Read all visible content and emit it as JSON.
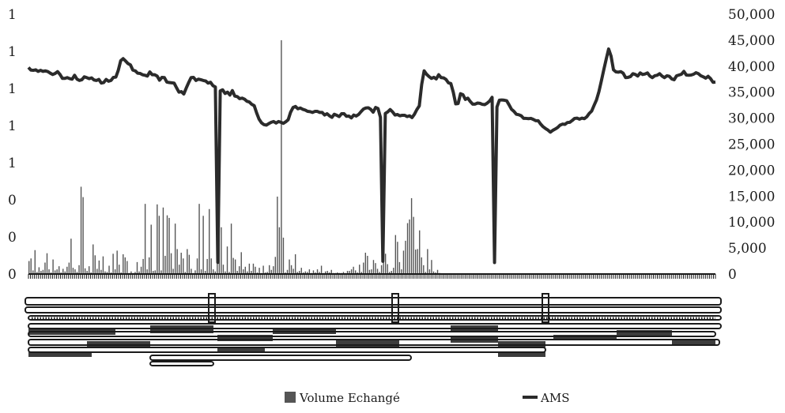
{
  "chart_data": {
    "type": "bar",
    "title": "",
    "xlabel": "",
    "ylabel": "",
    "y_left_ticks": [
      "1",
      "1",
      "1",
      "1",
      "1",
      "0",
      "0",
      "0"
    ],
    "y_right_ticks": [
      "50,000",
      "45,000",
      "40,000",
      "35,000",
      "30,000",
      "25,000",
      "20,000",
      "15,000",
      "10,000",
      "5,000",
      "0"
    ],
    "ylim_right": [
      0,
      50000
    ],
    "legend_position": "bottom",
    "grid": false,
    "x_tick_labels": "illegible",
    "series": [
      {
        "name": "Volume Echangé",
        "kind": "bar",
        "axis": "right",
        "color": "#555555",
        "values": [
          2500,
          3000,
          700,
          4600,
          400,
          1300,
          600,
          800,
          2200,
          4000,
          900,
          300,
          2800,
          700,
          900,
          1500,
          300,
          1000,
          500,
          1400,
          2200,
          6800,
          1200,
          900,
          400,
          1700,
          16800,
          14800,
          1100,
          600,
          1500,
          300,
          5700,
          3600,
          1000,
          2600,
          800,
          3400,
          500,
          400,
          1600,
          300,
          3900,
          900,
          4500,
          1800,
          300,
          3800,
          3200,
          2500,
          200,
          500,
          200,
          400,
          2300,
          500,
          1400,
          2900,
          13500,
          900,
          3200,
          9500,
          600,
          700,
          13400,
          11200,
          700,
          12800,
          3500,
          11300,
          10800,
          4000,
          1000,
          9700,
          4800,
          1800,
          4100,
          3000,
          400,
          4800,
          3700,
          1000,
          200,
          700,
          3000,
          13500,
          900,
          11200,
          600,
          2900,
          12500,
          3000,
          900,
          500,
          7000,
          12500,
          9000,
          1800,
          500,
          5300,
          400,
          9700,
          3100,
          2800,
          600,
          1500,
          4200,
          900,
          1400,
          500,
          2000,
          600,
          2000,
          1400,
          300,
          1200,
          200,
          1600,
          300,
          400,
          1700,
          800,
          1500,
          3300,
          14900,
          9000,
          45000,
          7000,
          300,
          800,
          2800,
          1700,
          1000,
          3800,
          400,
          600,
          1200,
          300,
          500,
          400,
          900,
          200,
          700,
          300,
          900,
          400,
          1600,
          200,
          500,
          600,
          300,
          800,
          200,
          200,
          300,
          200,
          200,
          400,
          200,
          600,
          600,
          900,
          1400,
          700,
          300,
          1800,
          400,
          2200,
          4100,
          3500,
          800,
          900,
          2700,
          2100,
          1000,
          400,
          1700,
          2700,
          3900,
          1900,
          400,
          600,
          1200,
          7500,
          6200,
          2300,
          900,
          4500,
          6400,
          9800,
          10500,
          14600,
          11000,
          4700,
          4800,
          8400,
          3200,
          1700,
          400,
          4800,
          900,
          2700,
          500,
          300,
          800,
          200,
          100,
          0,
          0,
          0,
          0,
          0,
          0,
          0,
          0,
          0,
          0,
          0,
          0,
          0,
          0,
          0,
          0,
          0,
          0,
          0,
          0,
          0,
          0,
          0,
          0,
          0,
          0,
          0,
          0,
          0,
          0,
          0,
          0,
          0,
          0,
          0,
          0,
          0,
          0,
          0,
          0,
          0,
          0,
          0,
          0,
          0,
          0,
          0,
          0,
          0,
          0,
          0,
          0,
          0,
          0,
          0,
          0,
          0,
          0,
          0,
          0,
          0,
          0,
          0,
          0,
          0,
          0,
          0,
          0,
          0,
          0,
          0,
          0,
          0,
          0,
          0,
          0,
          0,
          0,
          0,
          0,
          0,
          0,
          0,
          0,
          0,
          0,
          0,
          0,
          0,
          0,
          0,
          0,
          0,
          0,
          0,
          0,
          0,
          0,
          0,
          0,
          0,
          0,
          0,
          0,
          0,
          0,
          0,
          0,
          0,
          0,
          0,
          0,
          0,
          0,
          0,
          0,
          0,
          0,
          0,
          0,
          0,
          0,
          0,
          0,
          0,
          0,
          0,
          0,
          0,
          0,
          0,
          0,
          0,
          0,
          0,
          0
        ]
      },
      {
        "name": "AMS",
        "kind": "line",
        "axis": "left",
        "color": "#2b2b2b",
        "values": [
          0.795,
          0.785,
          0.784,
          0.786,
          0.78,
          0.784,
          0.78,
          0.782,
          0.779,
          0.773,
          0.768,
          0.772,
          0.779,
          0.768,
          0.753,
          0.753,
          0.756,
          0.752,
          0.75,
          0.765,
          0.75,
          0.745,
          0.748,
          0.759,
          0.756,
          0.752,
          0.755,
          0.747,
          0.745,
          0.749,
          0.735,
          0.737,
          0.749,
          0.742,
          0.745,
          0.757,
          0.758,
          0.784,
          0.821,
          0.829,
          0.82,
          0.81,
          0.805,
          0.785,
          0.782,
          0.773,
          0.772,
          0.767,
          0.765,
          0.762,
          0.778,
          0.767,
          0.767,
          0.762,
          0.746,
          0.757,
          0.756,
          0.739,
          0.737,
          0.736,
          0.735,
          0.717,
          0.7,
          0.702,
          0.693,
          0.716,
          0.737,
          0.756,
          0.757,
          0.745,
          0.75,
          0.748,
          0.745,
          0.743,
          0.735,
          0.738,
          0.725,
          0.72,
          0.045,
          0.705,
          0.709,
          0.695,
          0.7,
          0.689,
          0.706,
          0.685,
          0.683,
          0.675,
          0.677,
          0.673,
          0.665,
          0.662,
          0.653,
          0.648,
          0.62,
          0.596,
          0.582,
          0.575,
          0.573,
          0.579,
          0.584,
          0.587,
          0.581,
          0.587,
          0.584,
          0.58,
          0.586,
          0.594,
          0.623,
          0.641,
          0.645,
          0.636,
          0.639,
          0.634,
          0.631,
          0.626,
          0.625,
          0.622,
          0.626,
          0.626,
          0.622,
          0.622,
          0.612,
          0.617,
          0.609,
          0.603,
          0.615,
          0.611,
          0.606,
          0.617,
          0.617,
          0.607,
          0.608,
          0.601,
          0.612,
          0.608,
          0.614,
          0.625,
          0.635,
          0.639,
          0.64,
          0.634,
          0.623,
          0.641,
          0.637,
          0.603,
          0.049,
          0.618,
          0.624,
          0.633,
          0.624,
          0.612,
          0.614,
          0.609,
          0.611,
          0.611,
          0.606,
          0.609,
          0.602,
          0.615,
          0.633,
          0.647,
          0.73,
          0.782,
          0.769,
          0.76,
          0.753,
          0.757,
          0.751,
          0.767,
          0.756,
          0.755,
          0.749,
          0.736,
          0.733,
          0.7,
          0.655,
          0.656,
          0.694,
          0.69,
          0.672,
          0.677,
          0.664,
          0.654,
          0.654,
          0.658,
          0.657,
          0.653,
          0.652,
          0.658,
          0.666,
          0.68,
          0.044,
          0.643,
          0.669,
          0.67,
          0.669,
          0.667,
          0.651,
          0.634,
          0.626,
          0.615,
          0.613,
          0.609,
          0.599,
          0.599,
          0.598,
          0.599,
          0.595,
          0.59,
          0.59,
          0.577,
          0.567,
          0.56,
          0.554,
          0.546,
          0.553,
          0.558,
          0.564,
          0.573,
          0.577,
          0.576,
          0.583,
          0.584,
          0.591,
          0.599,
          0.6,
          0.596,
          0.6,
          0.598,
          0.605,
          0.618,
          0.627,
          0.649,
          0.67,
          0.702,
          0.743,
          0.786,
          0.827,
          0.866,
          0.839,
          0.786,
          0.778,
          0.777,
          0.779,
          0.773,
          0.756,
          0.757,
          0.76,
          0.771,
          0.768,
          0.762,
          0.774,
          0.768,
          0.77,
          0.774,
          0.762,
          0.756,
          0.763,
          0.765,
          0.771,
          0.762,
          0.756,
          0.763,
          0.761,
          0.751,
          0.748,
          0.763,
          0.766,
          0.769,
          0.78,
          0.766,
          0.765,
          0.766,
          0.769,
          0.775,
          0.771,
          0.763,
          0.759,
          0.754,
          0.761,
          0.752,
          0.738,
          0.739
        ]
      }
    ],
    "ams_ylim": [
      0,
      1
    ]
  }
}
